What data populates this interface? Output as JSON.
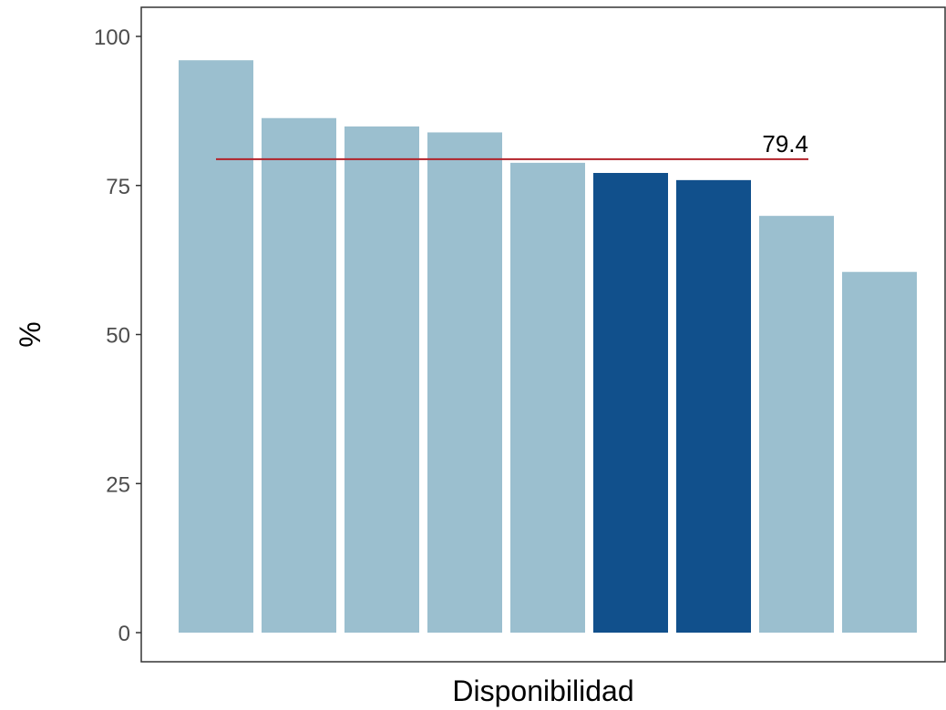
{
  "chart_data": {
    "type": "bar",
    "xlabel": "Disponibilidad",
    "ylabel": "%",
    "ylim": [
      0,
      100
    ],
    "yticks": [
      0,
      25,
      50,
      75,
      100
    ],
    "yticks_labels": [
      "0",
      "25",
      "50",
      "75",
      "100"
    ],
    "values": [
      96.0,
      86.3,
      84.9,
      83.9,
      78.8,
      77.1,
      75.9,
      69.9,
      60.5
    ],
    "highlight": [
      false,
      false,
      false,
      false,
      false,
      true,
      true,
      false,
      false
    ],
    "reference_line": {
      "value": 79.4,
      "label": "79.4"
    },
    "grid": false,
    "colors": {
      "bar": "#9bbfcf",
      "highlight": "#11508c",
      "reference_line": "#b2222a",
      "axis": "#333333"
    }
  }
}
